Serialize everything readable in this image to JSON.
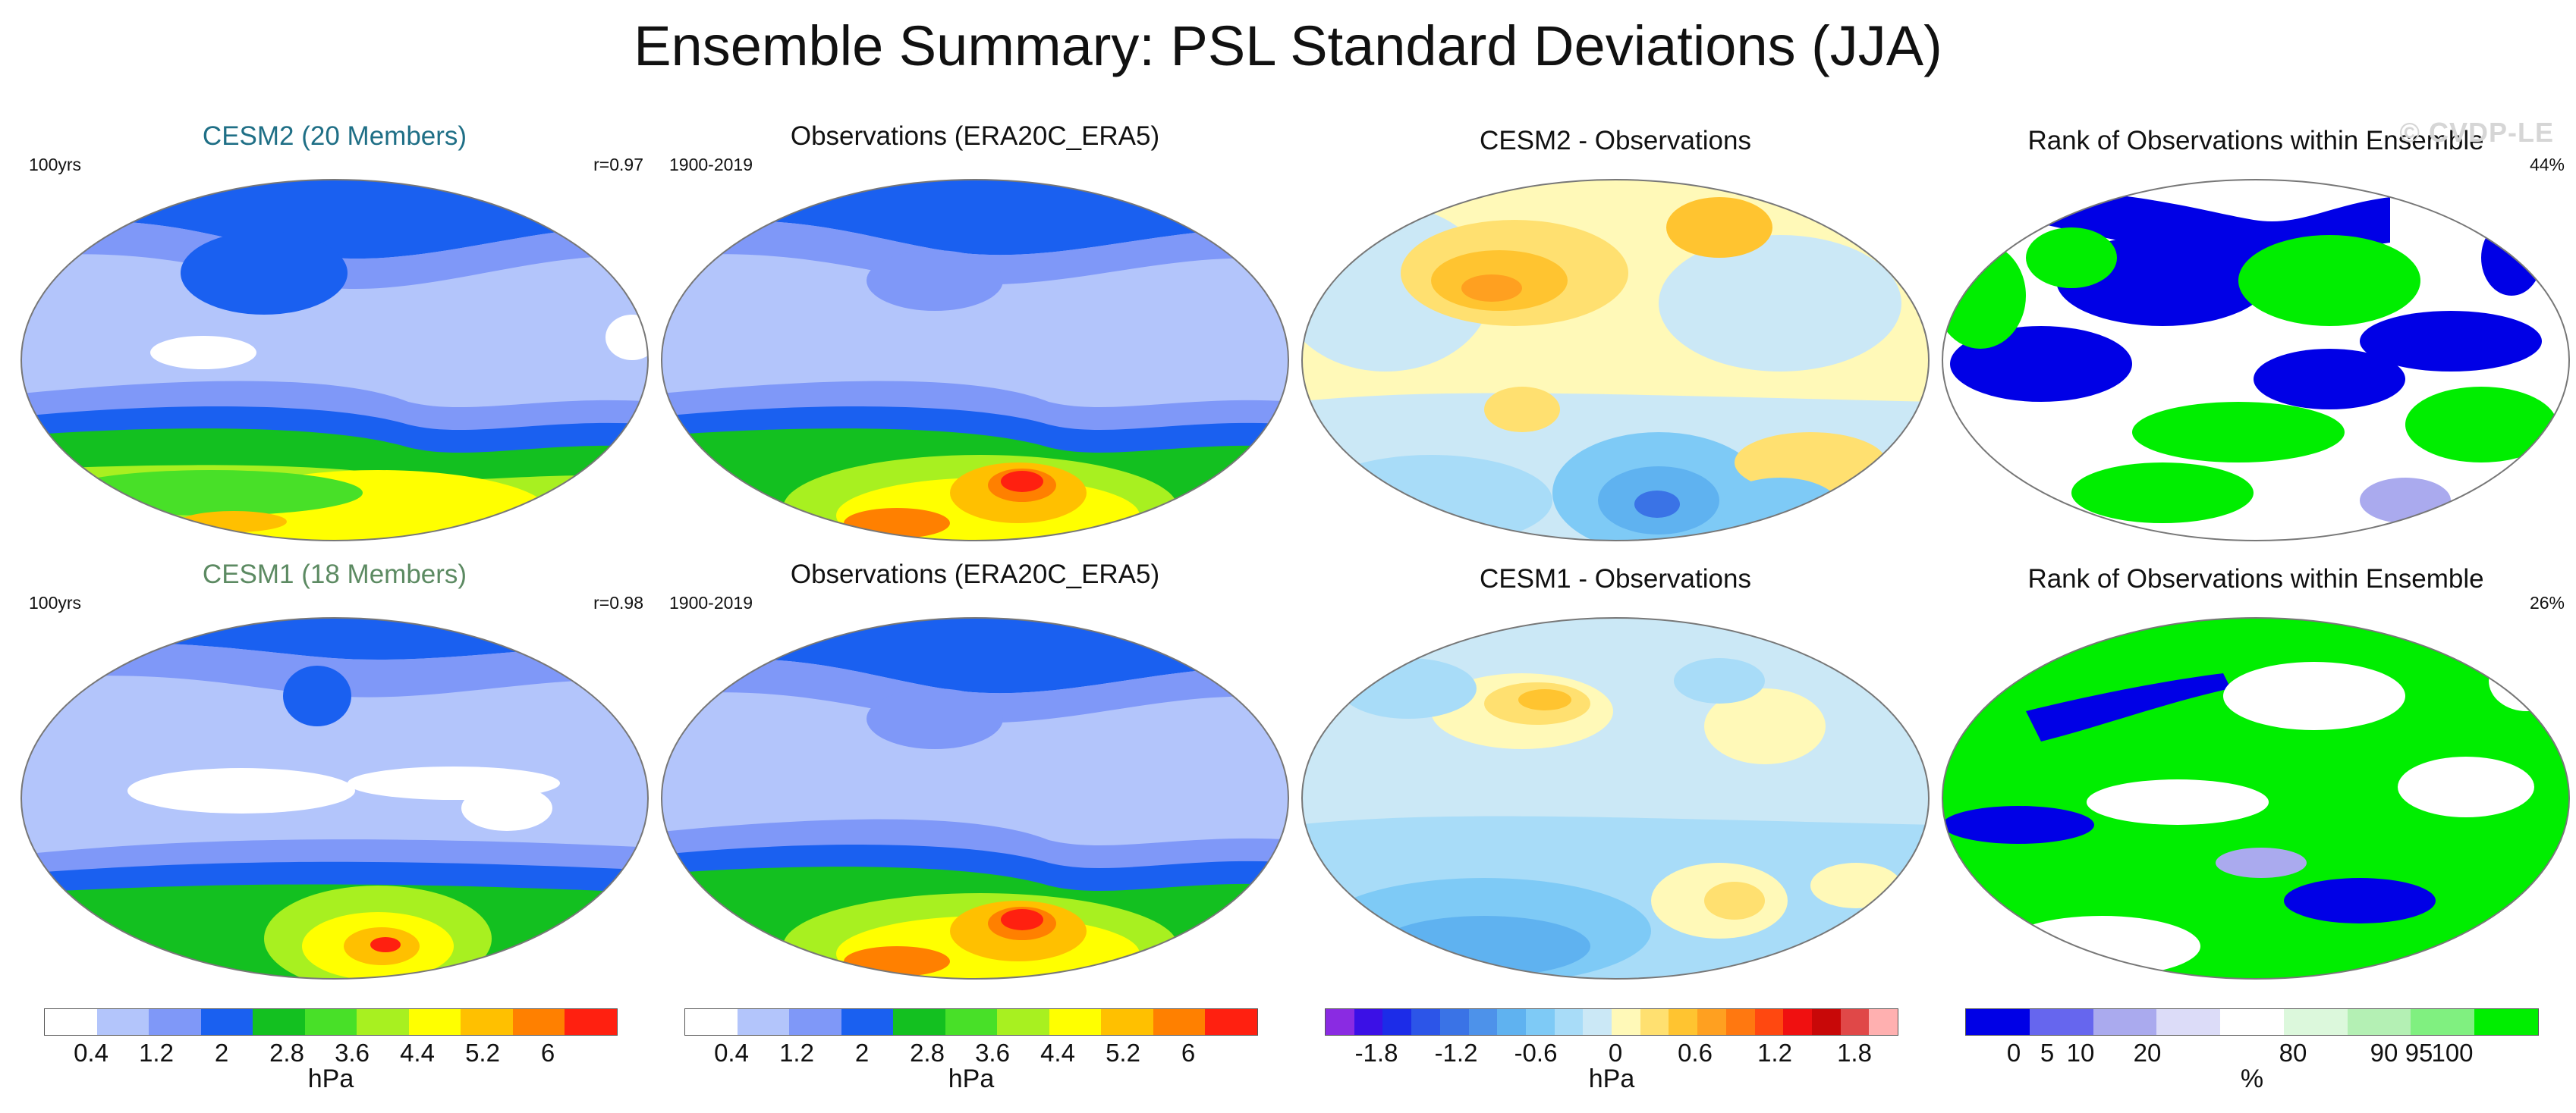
{
  "title": "Ensemble Summary: PSL Standard Deviations (JJA)",
  "watermark": "© CVDP-LE",
  "colors": {
    "std": [
      "#ffffff",
      "#b3c5fb",
      "#7f98f8",
      "#1a60f0",
      "#13c020",
      "#48e028",
      "#a8f020",
      "#ffff00",
      "#ffc000",
      "#ff8000",
      "#ff2010"
    ],
    "diff": [
      "#8a2be2",
      "#3b10e6",
      "#1c2ce8",
      "#2c55e8",
      "#3a73e6",
      "#4d92ea",
      "#5fb2f0",
      "#7ecaf6",
      "#a8dcf8",
      "#cbe8f6",
      "#fff9b8",
      "#ffe070",
      "#ffc430",
      "#ffa020",
      "#ff7810",
      "#ff4810",
      "#f01010",
      "#c80808",
      "#e04848",
      "#ffb0b0"
    ],
    "rank": [
      "#0000e6",
      "#6666ee",
      "#aaaaee",
      "#dcdcf8",
      "#ffffff",
      "#dcf8dc",
      "#b4f0b4",
      "#80f080",
      "#00ee00"
    ]
  },
  "rows": [
    {
      "panels": [
        {
          "title": "CESM2 (20 Members)",
          "left": "100yrs",
          "right": "r=0.97",
          "type": "std"
        },
        {
          "title": "Observations (ERA20C_ERA5)",
          "left": "1900-2019",
          "right": "",
          "type": "std"
        },
        {
          "title": "CESM2 - Observations",
          "left": "",
          "right": "",
          "type": "diff"
        },
        {
          "title": "Rank of Observations within Ensemble",
          "left": "",
          "right": "44%",
          "type": "rank"
        }
      ]
    },
    {
      "panels": [
        {
          "title": "CESM1 (18 Members)",
          "left": "100yrs",
          "right": "r=0.98",
          "type": "std"
        },
        {
          "title": "Observations (ERA20C_ERA5)",
          "left": "1900-2019",
          "right": "",
          "type": "std"
        },
        {
          "title": "CESM1 - Observations",
          "left": "",
          "right": "",
          "type": "diff"
        },
        {
          "title": "Rank of Observations within Ensemble",
          "left": "",
          "right": "26%",
          "type": "rank"
        }
      ]
    }
  ],
  "colorbars": [
    {
      "unit": "hPa",
      "ticks": [
        "0.4",
        "1.2",
        "2",
        "2.8",
        "3.6",
        "4.4",
        "5.2",
        "6"
      ],
      "type": "std"
    },
    {
      "unit": "hPa",
      "ticks": [
        "0.4",
        "1.2",
        "2",
        "2.8",
        "3.6",
        "4.4",
        "5.2",
        "6"
      ],
      "type": "std"
    },
    {
      "unit": "hPa",
      "ticks": [
        "-1.8",
        "-1.2",
        "-0.6",
        "0",
        "0.6",
        "1.2",
        "1.8"
      ],
      "type": "diff"
    },
    {
      "unit": "%",
      "ticks": [
        "0",
        "5",
        "10",
        "20",
        "80",
        "90",
        "95",
        "100"
      ],
      "type": "rank"
    }
  ],
  "chart_data": [
    {
      "type": "heatmap",
      "title": "CESM2 (20 Members)",
      "units": "hPa",
      "levels": [
        0.4,
        0.8,
        1.2,
        1.6,
        2,
        2.4,
        2.8,
        3.2,
        3.6,
        4,
        4.4,
        4.8,
        5.2,
        5.6,
        6
      ],
      "pattern_correlation": 0.97,
      "period": "100yrs"
    },
    {
      "type": "heatmap",
      "title": "Observations (ERA20C_ERA5)",
      "units": "hPa",
      "levels": [
        0.4,
        0.8,
        1.2,
        1.6,
        2,
        2.4,
        2.8,
        3.2,
        3.6,
        4,
        4.4,
        4.8,
        5.2,
        5.6,
        6
      ],
      "period": "1900-2019"
    },
    {
      "type": "heatmap",
      "title": "CESM2 - Observations",
      "units": "hPa",
      "levels": [
        -1.8,
        -1.5,
        -1.2,
        -0.9,
        -0.6,
        -0.3,
        0,
        0.3,
        0.6,
        0.9,
        1.2,
        1.5,
        1.8
      ]
    },
    {
      "type": "heatmap",
      "title": "Rank of Observations within Ensemble",
      "units": "%",
      "levels": [
        0,
        5,
        10,
        20,
        80,
        90,
        95,
        100
      ],
      "summary": "44%"
    },
    {
      "type": "heatmap",
      "title": "CESM1 (18 Members)",
      "units": "hPa",
      "levels": [
        0.4,
        0.8,
        1.2,
        1.6,
        2,
        2.4,
        2.8,
        3.2,
        3.6,
        4,
        4.4,
        4.8,
        5.2,
        5.6,
        6
      ],
      "pattern_correlation": 0.98,
      "period": "100yrs"
    },
    {
      "type": "heatmap",
      "title": "Observations (ERA20C_ERA5)",
      "units": "hPa",
      "levels": [
        0.4,
        0.8,
        1.2,
        1.6,
        2,
        2.4,
        2.8,
        3.2,
        3.6,
        4,
        4.4,
        4.8,
        5.2,
        5.6,
        6
      ],
      "period": "1900-2019"
    },
    {
      "type": "heatmap",
      "title": "CESM1 - Observations",
      "units": "hPa",
      "levels": [
        -1.8,
        -1.5,
        -1.2,
        -0.9,
        -0.6,
        -0.3,
        0,
        0.3,
        0.6,
        0.9,
        1.2,
        1.5,
        1.8
      ]
    },
    {
      "type": "heatmap",
      "title": "Rank of Observations within Ensemble",
      "units": "%",
      "levels": [
        0,
        5,
        10,
        20,
        80,
        90,
        95,
        100
      ],
      "summary": "26%"
    }
  ]
}
